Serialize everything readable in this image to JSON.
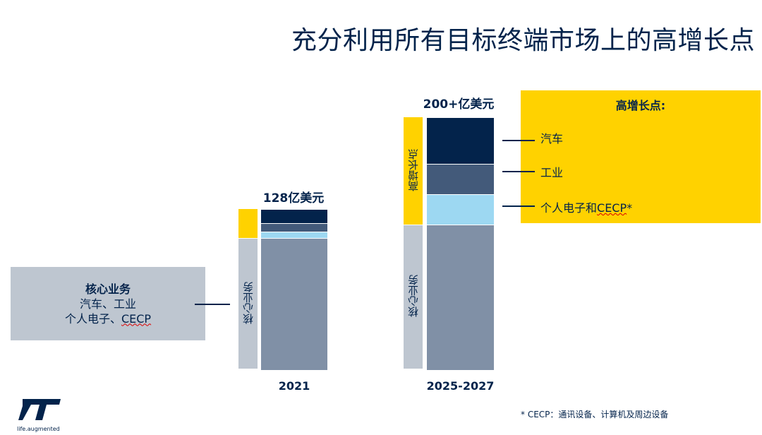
{
  "title": "充分利用所有目标终端市场上的高增长点",
  "legend_box": {
    "title": "高增长点:"
  },
  "core_box": {
    "title": "核心业务",
    "line1": "汽车、工业",
    "line2_prefix": "个人电子、",
    "line2_term": "CECP"
  },
  "side_labels": {
    "growth": "高增长点",
    "core": "核心业务"
  },
  "segment_labels": {
    "auto": "汽车",
    "industrial": "工业",
    "personal_prefix": "个人电子和",
    "personal_term": "CECP",
    "personal_suffix": "*"
  },
  "footnote": "* CECP：通讯设备、计算机及周边设备",
  "logo": {
    "text": "life.augmented",
    "brand": "ST"
  },
  "colors": {
    "auto": "#03234b",
    "industrial": "#435a7a",
    "personal": "#9dd8f2",
    "core": "#8090a6",
    "growth": "#ffd200",
    "core_side": "#bec6d0"
  },
  "chart_data": {
    "type": "stacked-bar",
    "unit": "亿美元",
    "categories": [
      "2021",
      "2025-2027"
    ],
    "total_labels": [
      "128亿美元",
      "200+亿美元"
    ],
    "totals": [
      128,
      200
    ],
    "series": [
      {
        "name": "核心业务",
        "values": [
          105,
          116
        ]
      },
      {
        "name": "个人电子和CECP*",
        "values": [
          5,
          24
        ]
      },
      {
        "name": "工业",
        "values": [
          7,
          24
        ]
      },
      {
        "name": "汽车",
        "values": [
          11,
          37
        ]
      }
    ]
  }
}
